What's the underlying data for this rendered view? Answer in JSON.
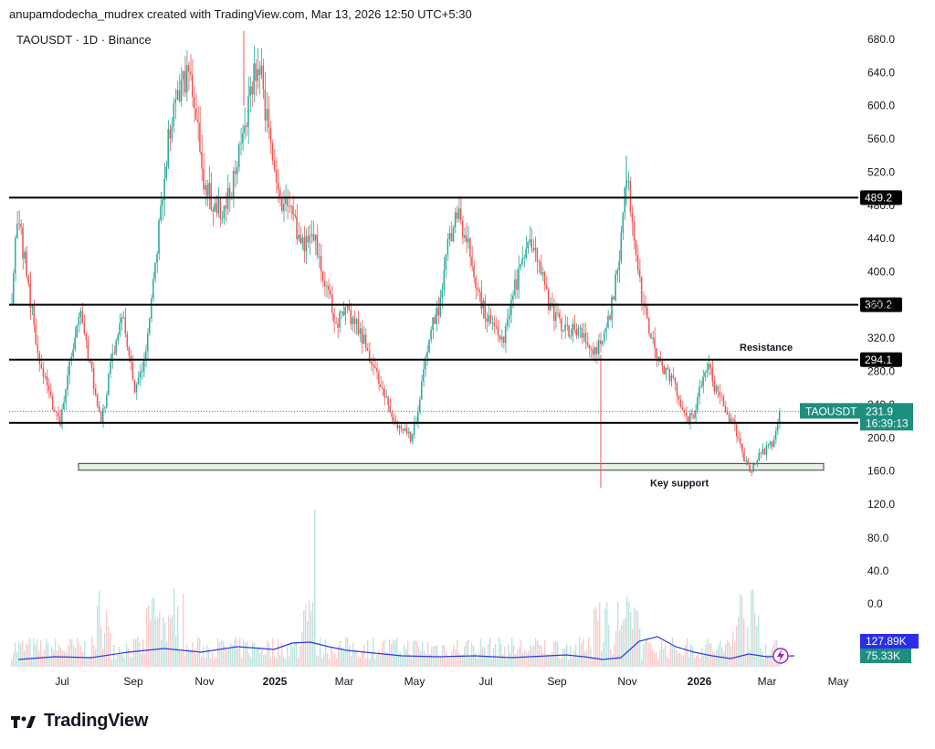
{
  "header": {
    "text": "anupamdodecha_mudrex created with TradingView.com, Mar 13, 2026 12:50 UTC+5:30"
  },
  "symbol": {
    "text": "TAOUSDT · 1D · Binance"
  },
  "footer": {
    "brand": "TradingView",
    "logo_icon": "tradingview-logo-icon"
  },
  "colors": {
    "up": "#26a69a",
    "down": "#ef5350",
    "volume_ma": "#2b3adc",
    "price_tag": "#1e8f7e",
    "level": "#000000"
  },
  "chart_data": {
    "type": "candlestick",
    "price_axis": {
      "min": 120.0,
      "max": 680.0,
      "ticks": [
        "680.0",
        "640.0",
        "600.0",
        "560.0",
        "520.0",
        "480.0",
        "440.0",
        "400.0",
        "360.0",
        "320.0",
        "280.0",
        "240.0",
        "200.0",
        "160.0",
        "120.0"
      ]
    },
    "volume_axis": {
      "ticks": [
        "80.0",
        "40.0",
        "0.0"
      ]
    },
    "time_axis": [
      "Jul",
      "Sep",
      "Nov",
      "2025",
      "Mar",
      "May",
      "Jul",
      "Sep",
      "Nov",
      "2026",
      "Mar",
      "May"
    ],
    "levels": [
      {
        "value": 489.2,
        "label": "489.2"
      },
      {
        "value": 360.2,
        "label": "360.2"
      },
      {
        "value": 294.1,
        "label": "294.1"
      },
      {
        "value": 218.0,
        "label": "218.0"
      }
    ],
    "zones": [
      {
        "from": 161,
        "to": 169,
        "label": "Key support"
      }
    ],
    "annotations": [
      {
        "text": "Resistance",
        "near": 294.1
      },
      {
        "text": "Key support",
        "near": 161
      }
    ],
    "last_price": {
      "symbol": "TAOUSDT",
      "value": "231.9",
      "countdown": "16:39:13"
    },
    "volume_labels": {
      "ma": "127.89K",
      "volume": "75.33K"
    },
    "price_path": [
      [
        0,
        370
      ],
      [
        3,
        470
      ],
      [
        8,
        400
      ],
      [
        14,
        300
      ],
      [
        20,
        250
      ],
      [
        26,
        220
      ],
      [
        32,
        300
      ],
      [
        36,
        355
      ],
      [
        42,
        290
      ],
      [
        48,
        215
      ],
      [
        54,
        300
      ],
      [
        60,
        350
      ],
      [
        66,
        250
      ],
      [
        72,
        300
      ],
      [
        78,
        430
      ],
      [
        84,
        560
      ],
      [
        90,
        620
      ],
      [
        96,
        650
      ],
      [
        102,
        520
      ],
      [
        108,
        480
      ],
      [
        114,
        470
      ],
      [
        120,
        520
      ],
      [
        126,
        580
      ],
      [
        130,
        650
      ],
      [
        134,
        640
      ],
      [
        138,
        560
      ],
      [
        144,
        480
      ],
      [
        150,
        470
      ],
      [
        156,
        430
      ],
      [
        162,
        450
      ],
      [
        168,
        390
      ],
      [
        174,
        340
      ],
      [
        180,
        350
      ],
      [
        186,
        330
      ],
      [
        192,
        300
      ],
      [
        198,
        260
      ],
      [
        204,
        225
      ],
      [
        210,
        210
      ],
      [
        214,
        200
      ],
      [
        218,
        230
      ],
      [
        222,
        300
      ],
      [
        226,
        340
      ],
      [
        230,
        360
      ],
      [
        234,
        440
      ],
      [
        240,
        470
      ],
      [
        246,
        420
      ],
      [
        252,
        360
      ],
      [
        258,
        330
      ],
      [
        264,
        320
      ],
      [
        270,
        380
      ],
      [
        276,
        430
      ],
      [
        282,
        420
      ],
      [
        288,
        360
      ],
      [
        294,
        340
      ],
      [
        300,
        330
      ],
      [
        306,
        330
      ],
      [
        312,
        300
      ],
      [
        318,
        320
      ],
      [
        322,
        360
      ],
      [
        326,
        420
      ],
      [
        330,
        520
      ],
      [
        334,
        430
      ],
      [
        338,
        370
      ],
      [
        342,
        330
      ],
      [
        346,
        300
      ],
      [
        350,
        280
      ],
      [
        354,
        270
      ],
      [
        358,
        250
      ],
      [
        362,
        220
      ],
      [
        366,
        230
      ],
      [
        370,
        270
      ],
      [
        374,
        290
      ],
      [
        378,
        255
      ],
      [
        382,
        240
      ],
      [
        386,
        220
      ],
      [
        390,
        200
      ],
      [
        393,
        175
      ],
      [
        396,
        160
      ],
      [
        400,
        175
      ],
      [
        404,
        185
      ],
      [
        408,
        195
      ],
      [
        410,
        205
      ],
      [
        412,
        232
      ]
    ],
    "volume_ma_path": [
      [
        0,
        8
      ],
      [
        40,
        11
      ],
      [
        80,
        10
      ],
      [
        120,
        16
      ],
      [
        160,
        20
      ],
      [
        200,
        16
      ],
      [
        240,
        22
      ],
      [
        280,
        19
      ],
      [
        300,
        26
      ],
      [
        320,
        27
      ],
      [
        340,
        22
      ],
      [
        360,
        18
      ],
      [
        400,
        14
      ],
      [
        420,
        12
      ],
      [
        460,
        11
      ],
      [
        500,
        12
      ],
      [
        540,
        10
      ],
      [
        560,
        11
      ],
      [
        600,
        13
      ],
      [
        620,
        11
      ],
      [
        640,
        8
      ],
      [
        660,
        10
      ],
      [
        680,
        28
      ],
      [
        700,
        33
      ],
      [
        720,
        22
      ],
      [
        740,
        16
      ],
      [
        760,
        12
      ],
      [
        780,
        9
      ],
      [
        800,
        14
      ],
      [
        820,
        11
      ],
      [
        850,
        12
      ]
    ]
  }
}
